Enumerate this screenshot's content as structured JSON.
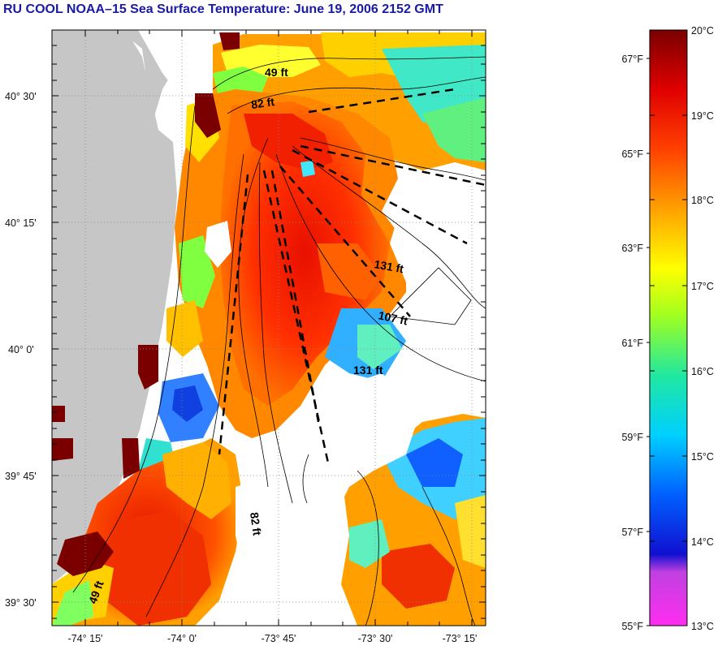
{
  "title": "RU COOL  NOAA–15  Sea Surface Temperature:  June 19, 2006 2152 GMT",
  "map": {
    "lon_ticks": [
      "-74° 15'",
      "-74° 0'",
      "-73° 45'",
      "-73° 30'",
      "-73° 15'"
    ],
    "lat_ticks": [
      "40° 30'",
      "40° 15'",
      "40° 0'",
      "39° 45'",
      "39° 30'"
    ],
    "depth_labels": [
      "49 ft",
      "82 ft",
      "131 ft",
      "107 ft",
      "131 ft",
      "82 ft",
      "49 ft"
    ]
  },
  "colorbar": {
    "celsius": [
      "20°C",
      "19°C",
      "18°C",
      "17°C",
      "16°C",
      "15°C",
      "14°C",
      "13°C"
    ],
    "fahrenheit": [
      "67°F",
      "65°F",
      "63°F",
      "61°F",
      "59°F",
      "57°F",
      "55°F"
    ]
  }
}
